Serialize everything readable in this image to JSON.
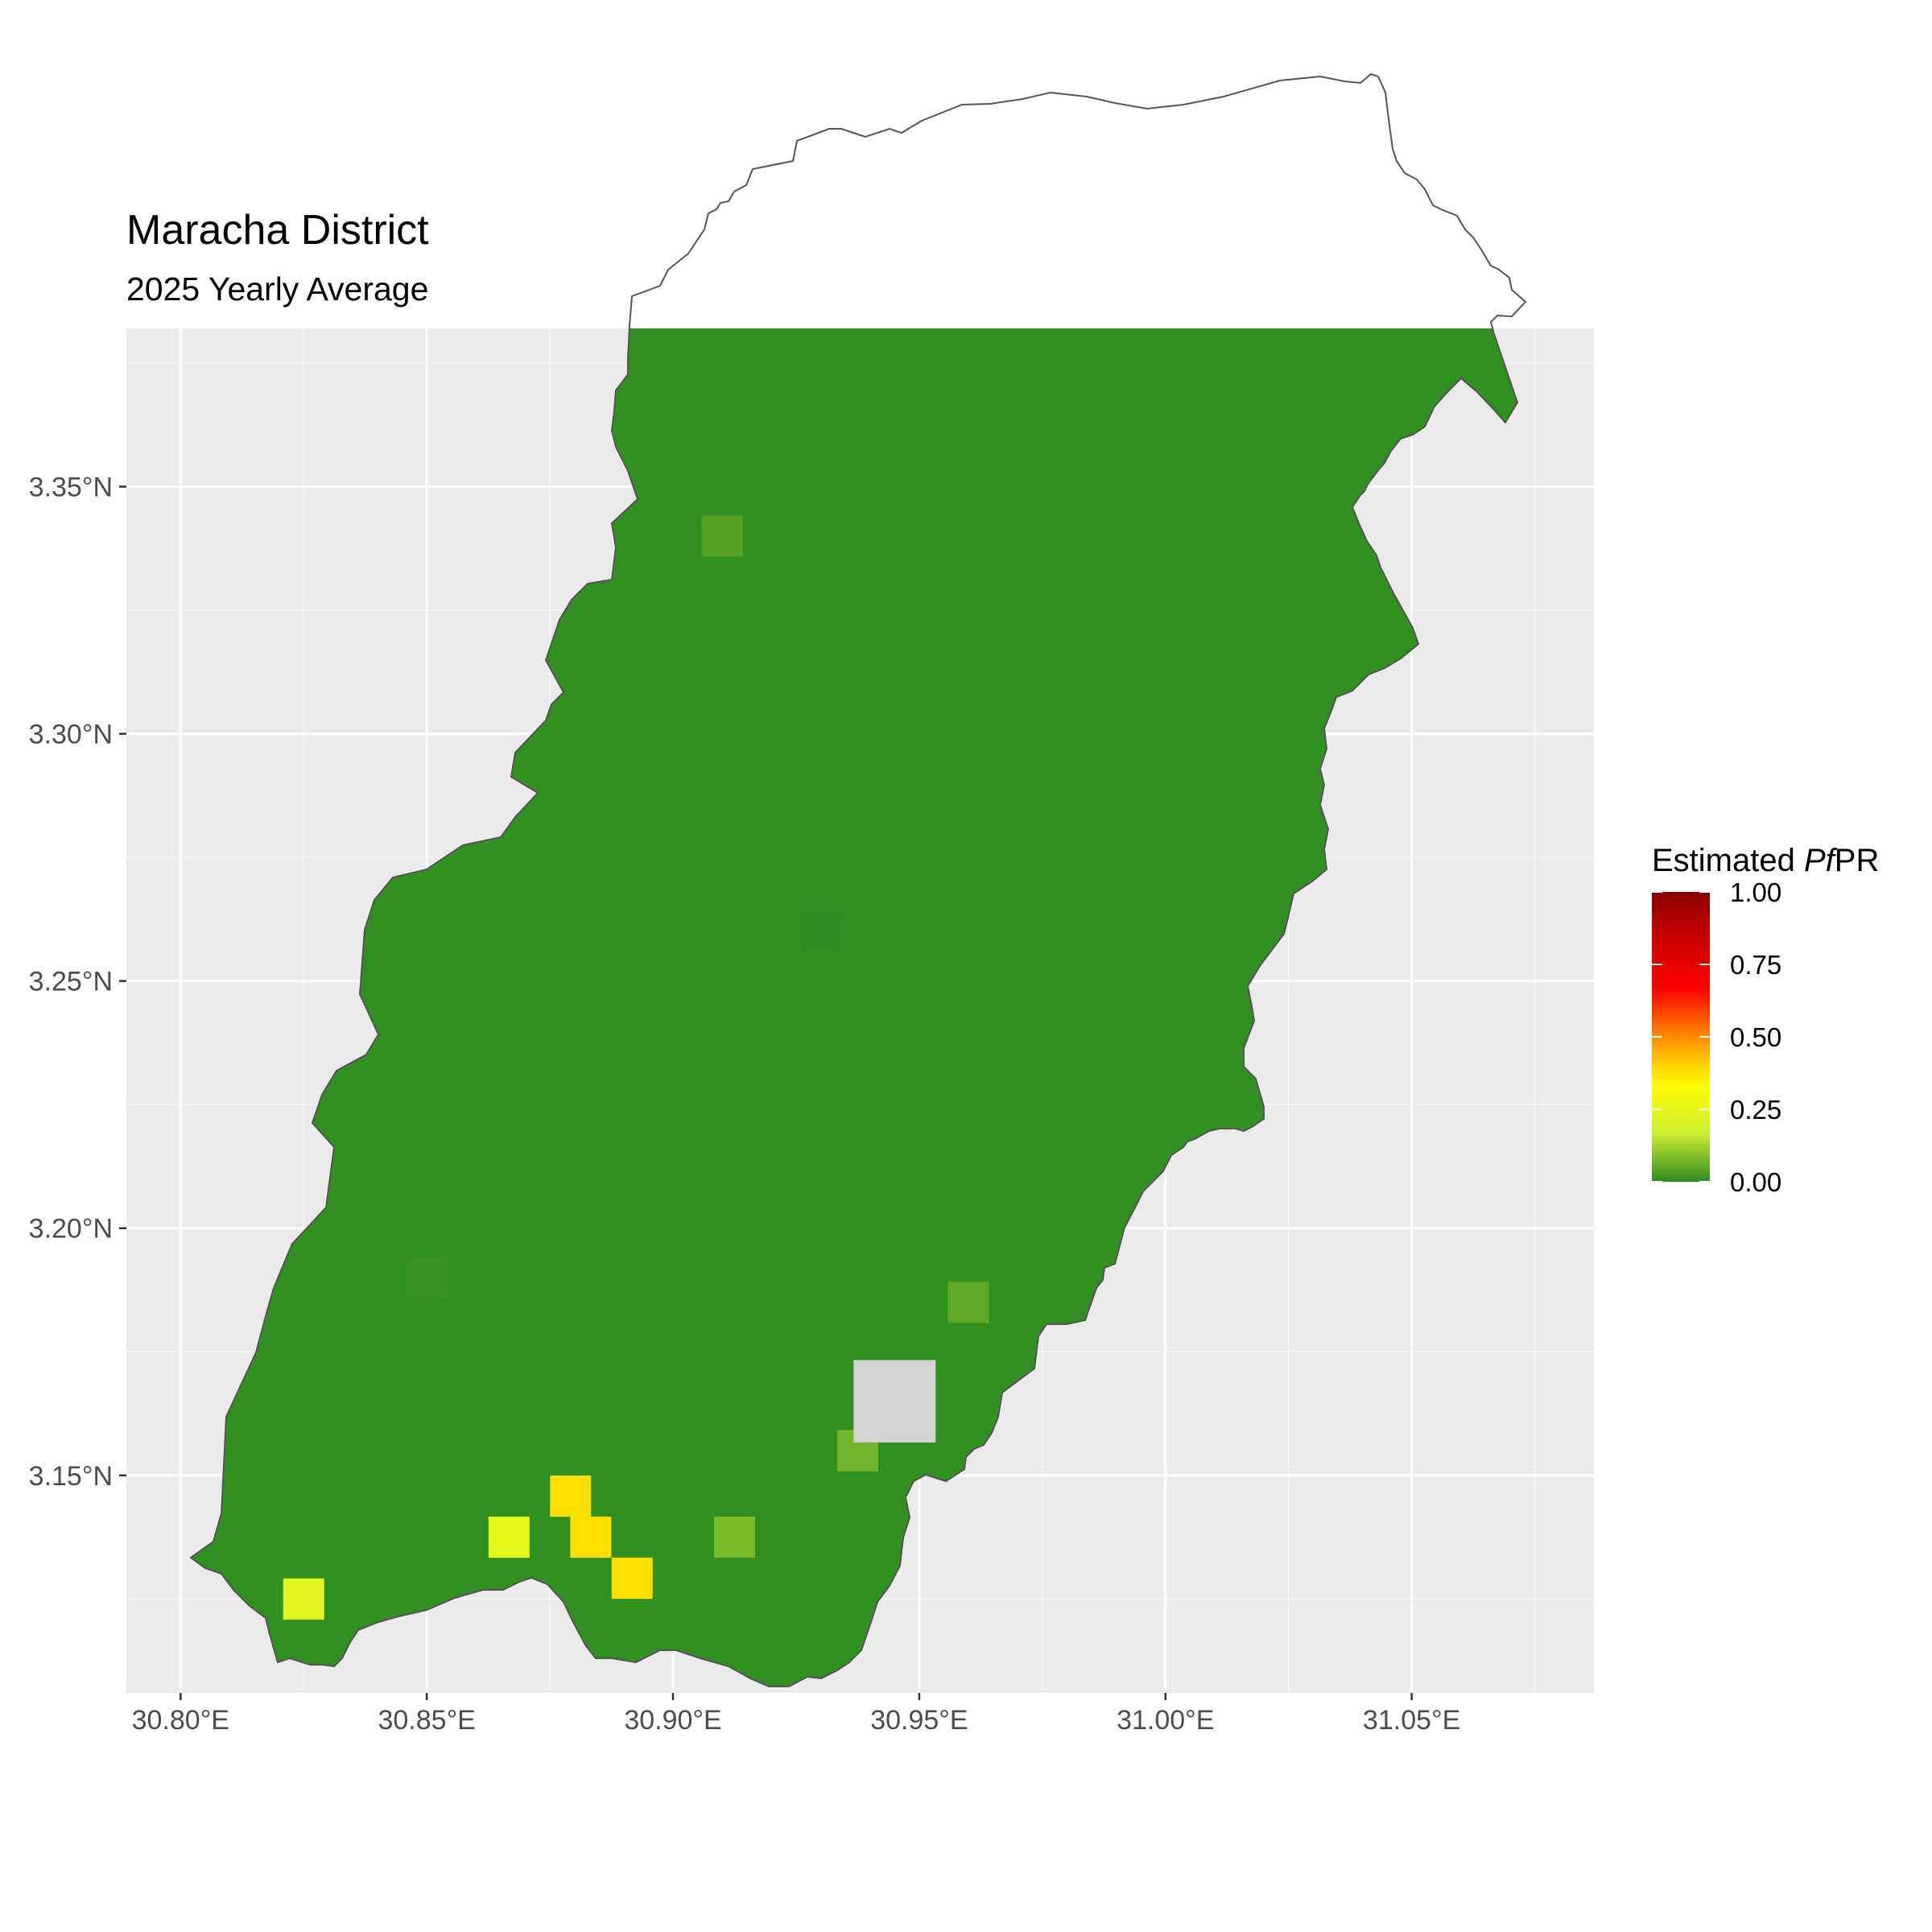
{
  "title": "Maracha District",
  "subtitle": "2025 Yearly Average",
  "legend": {
    "title_prefix": "Estimated ",
    "title_italic": "Pf",
    "title_suffix": "PR",
    "breaks": [
      "1.00",
      "0.75",
      "0.50",
      "0.25",
      "0.00"
    ],
    "colors": [
      "#2e8b22",
      "#ccee33",
      "#ffff00",
      "#ff8c00",
      "#ff0000",
      "#cc0000",
      "#8b0000"
    ]
  },
  "chart_data": {
    "type": "heatmap",
    "title": "Maracha District",
    "subtitle": "2025 Yearly Average",
    "x_ticks": [
      "30.80°E",
      "30.85°E",
      "30.90°E",
      "30.95°E",
      "31.00°E",
      "31.05°E"
    ],
    "x_tick_values": [
      30.8,
      30.85,
      30.9,
      30.95,
      31.0,
      31.05
    ],
    "y_ticks": [
      "3.15°N",
      "3.20°N",
      "3.25°N",
      "3.30°N",
      "3.35°N"
    ],
    "y_tick_values": [
      3.15,
      3.2,
      3.25,
      3.3,
      3.35
    ],
    "xlim": [
      30.789,
      31.087
    ],
    "ylim": [
      3.106,
      3.382
    ],
    "legend_title": "Estimated PfPR",
    "scale_range": [
      0,
      1
    ],
    "colors": {
      "panel_background": "#ebebeb",
      "grid": "#ffffff",
      "missing": "#d3d3d3",
      "outline": "#555555"
    },
    "cells": [
      {
        "lon": 30.825,
        "lat": 3.125,
        "value": 0.24
      },
      {
        "lon": 30.8667,
        "lat": 3.1375,
        "value": 0.25
      },
      {
        "lon": 30.8792,
        "lat": 3.1458,
        "value": 0.38
      },
      {
        "lon": 30.8833,
        "lat": 3.1375,
        "value": 0.38
      },
      {
        "lon": 30.8917,
        "lat": 3.1292,
        "value": 0.38
      },
      {
        "lon": 30.9125,
        "lat": 3.1375,
        "value": 0.08
      },
      {
        "lon": 30.9375,
        "lat": 3.155,
        "value": 0.07
      },
      {
        "lon": 30.96,
        "lat": 3.185,
        "value": 0.05
      },
      {
        "lon": 30.91,
        "lat": 3.34,
        "value": 0.04
      },
      {
        "lon": 30.93,
        "lat": 3.26,
        "value": 0.0
      },
      {
        "lon": 30.85,
        "lat": 3.19,
        "value": 0.01
      }
    ],
    "missing_cells": [
      {
        "lon": 30.945,
        "lat": 3.165
      }
    ]
  }
}
